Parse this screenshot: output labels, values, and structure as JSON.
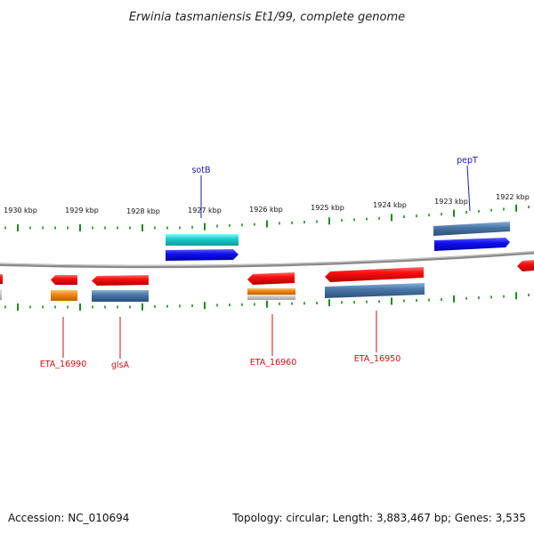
{
  "title": "Erwinia tasmaniensis Et1/99, complete genome",
  "footer": {
    "accession": "Accession: NC_010694",
    "summary": "Topology: circular; Length: 3,883,467 bp; Genes: 3,535"
  },
  "scale_labels": [
    "1930 kbp",
    "1929 kbp",
    "1928 kbp",
    "1927 kbp",
    "1926 kbp",
    "1925 kbp",
    "1924 kbp",
    "1923 kbp",
    "1922 kbp"
  ],
  "gene_labels": {
    "sotB": "sotB",
    "pepT": "pepT",
    "eta16990": "ETA_16990",
    "glsA": "glsA",
    "eta16960": "ETA_16960",
    "eta16950": "ETA_16950"
  },
  "colors": {
    "backbone": "#8a8a8a",
    "tick": "#1e8a1e",
    "cds_red": "#e81010",
    "cds_blue": "#1010e0",
    "cyan": "#18c8c8",
    "orange": "#f08a10",
    "steel": "#3f6fa0",
    "gray": "#b8b8b8",
    "label_blue": "#1a1ab0",
    "label_red": "#cc1010"
  }
}
